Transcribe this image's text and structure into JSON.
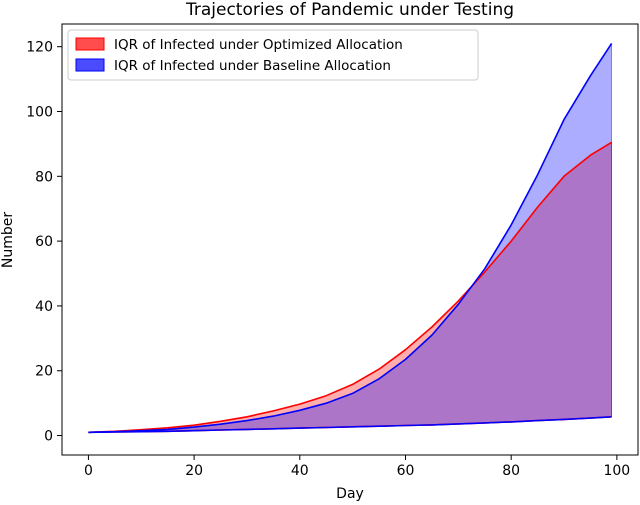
{
  "chart_data": {
    "type": "area",
    "title": "Trajectories of Pandemic under Testing",
    "xlabel": "Day",
    "ylabel": "Number",
    "xlim": [
      -5,
      104
    ],
    "ylim": [
      -6,
      127
    ],
    "xticks": [
      0,
      20,
      40,
      60,
      80,
      100
    ],
    "yticks": [
      0,
      20,
      40,
      60,
      80,
      100,
      120
    ],
    "grid": false,
    "legend_position": "top-left",
    "series": [
      {
        "name": "IQR of Infected under Optimized Allocation",
        "color": "#ff0000",
        "x": [
          0,
          5,
          10,
          15,
          20,
          25,
          30,
          35,
          40,
          45,
          50,
          55,
          60,
          65,
          70,
          75,
          80,
          85,
          90,
          95,
          99
        ],
        "upper": [
          1,
          1.3,
          1.8,
          2.4,
          3.2,
          4.4,
          5.8,
          7.6,
          9.7,
          12.3,
          15.8,
          20.5,
          26.5,
          33.5,
          41.5,
          50.5,
          60,
          70.5,
          80,
          86.5,
          90.5
        ],
        "lower": [
          1,
          1.1,
          1.2,
          1.3,
          1.5,
          1.7,
          1.9,
          2.1,
          2.3,
          2.5,
          2.7,
          2.9,
          3.1,
          3.3,
          3.6,
          3.9,
          4.2,
          4.6,
          5.0,
          5.4,
          5.8
        ]
      },
      {
        "name": "IQR of Infected under Baseline Allocation",
        "color": "#0000ff",
        "x": [
          0,
          5,
          10,
          15,
          20,
          25,
          30,
          35,
          40,
          45,
          50,
          55,
          60,
          65,
          70,
          75,
          80,
          85,
          90,
          95,
          99
        ],
        "upper": [
          1,
          1.2,
          1.5,
          1.9,
          2.6,
          3.5,
          4.6,
          6.0,
          7.8,
          10.0,
          13.0,
          17.5,
          23.5,
          31.0,
          40.5,
          51.5,
          65.0,
          80.5,
          97.5,
          111.0,
          121.0
        ],
        "lower": [
          1,
          1.1,
          1.2,
          1.3,
          1.5,
          1.7,
          1.9,
          2.1,
          2.3,
          2.5,
          2.7,
          2.9,
          3.1,
          3.3,
          3.6,
          3.9,
          4.2,
          4.6,
          5.0,
          5.4,
          5.8
        ]
      }
    ]
  }
}
